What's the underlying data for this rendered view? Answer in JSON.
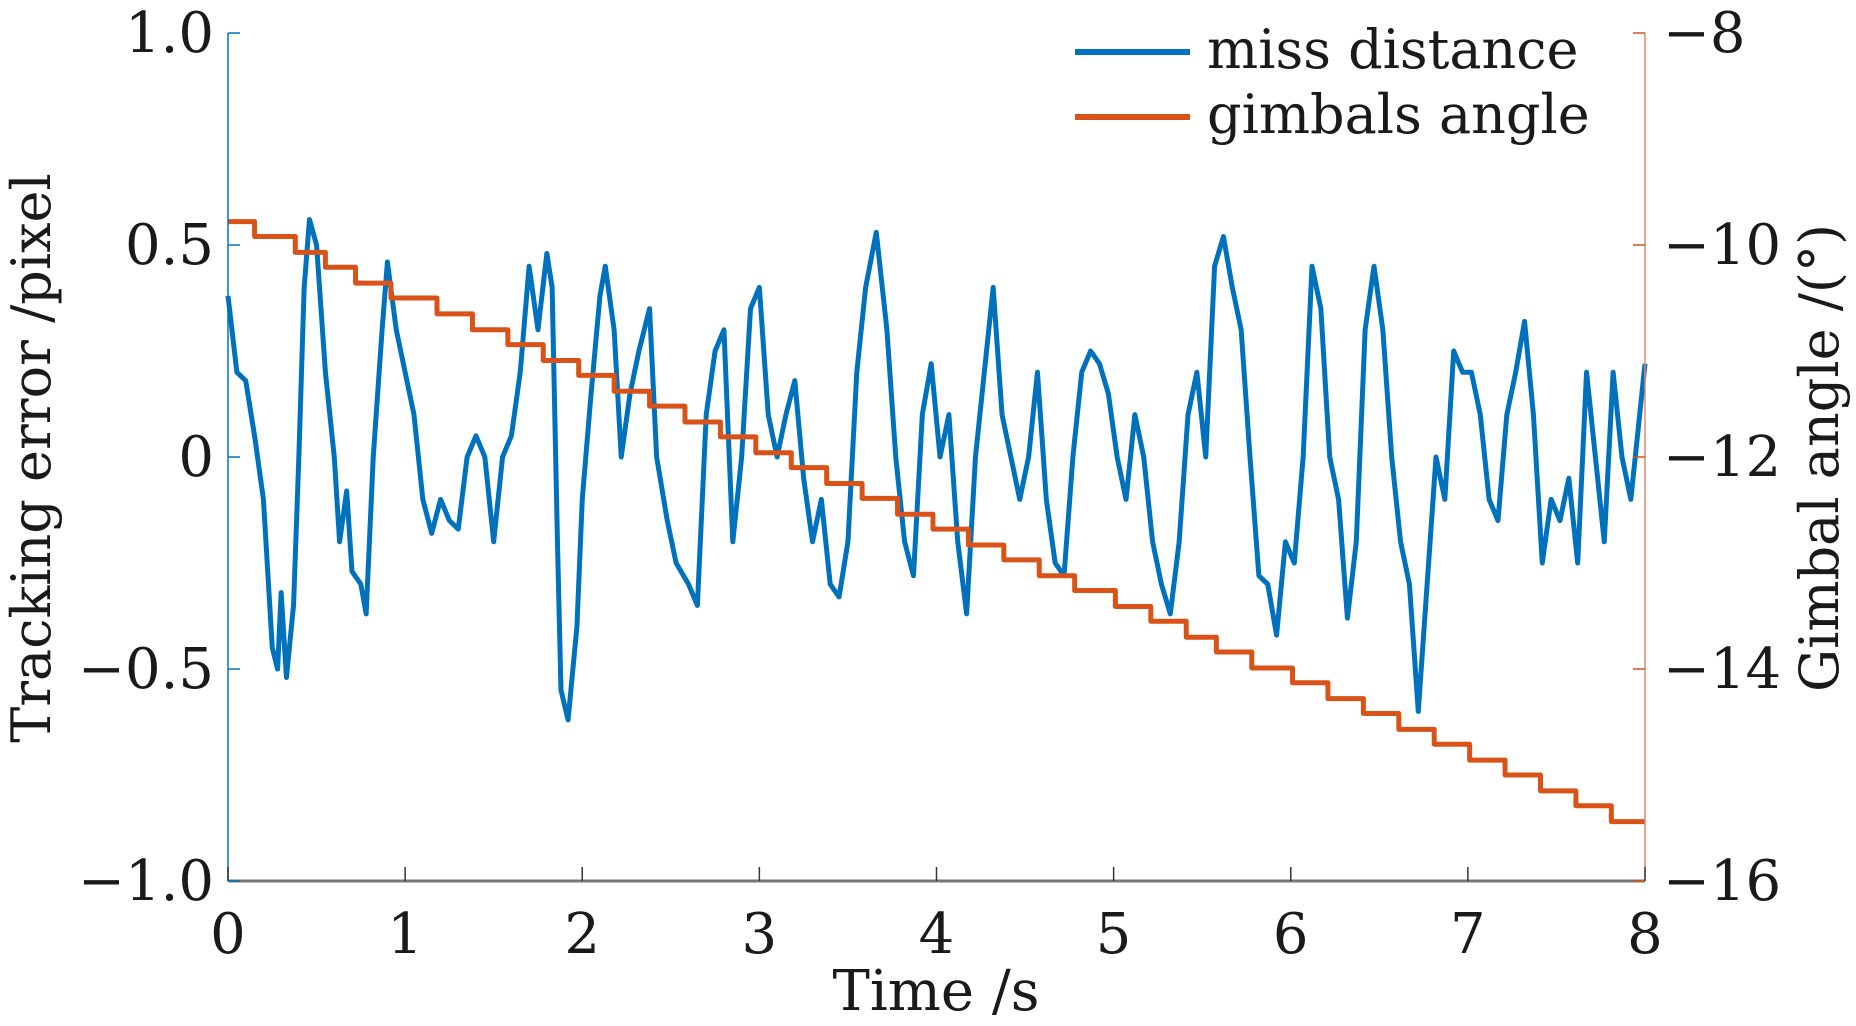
{
  "chart_data": {
    "type": "line",
    "title": "",
    "xlabel": "Time /s",
    "ylabel_left": "Tracking error /pixel",
    "ylabel_right": "Gimbal angle /(°)",
    "xlim": [
      0,
      8
    ],
    "ylim_left": [
      -1,
      1
    ],
    "ylim_right": [
      -16,
      -8
    ],
    "x_ticks": [
      "0",
      "1",
      "2",
      "3",
      "4",
      "5",
      "6",
      "7",
      "8"
    ],
    "y_left_ticks": [
      {
        "v": 1,
        "label": "1.0"
      },
      {
        "v": 0.5,
        "label": "0.5"
      },
      {
        "v": 0,
        "label": "0"
      },
      {
        "v": -0.5,
        "label": "−0.5"
      },
      {
        "v": -1,
        "label": "−1.0"
      }
    ],
    "y_right_ticks": [
      {
        "v": -8,
        "label": "−8"
      },
      {
        "v": -10,
        "label": "−10"
      },
      {
        "v": -12,
        "label": "−12"
      },
      {
        "v": -14,
        "label": "−14"
      },
      {
        "v": -16,
        "label": "−16"
      }
    ],
    "grid": false,
    "legend_position": "top-right",
    "series": [
      {
        "name": "miss distance",
        "axis": "left",
        "color": "#0072BD",
        "x": [
          0,
          0.05,
          0.1,
          0.15,
          0.2,
          0.25,
          0.28,
          0.3,
          0.33,
          0.37,
          0.4,
          0.43,
          0.46,
          0.5,
          0.55,
          0.6,
          0.63,
          0.67,
          0.7,
          0.75,
          0.78,
          0.82,
          0.87,
          0.9,
          0.95,
          1.0,
          1.05,
          1.1,
          1.15,
          1.2,
          1.25,
          1.3,
          1.35,
          1.4,
          1.45,
          1.5,
          1.55,
          1.6,
          1.65,
          1.7,
          1.75,
          1.8,
          1.83,
          1.86,
          1.88,
          1.92,
          1.97,
          2.0,
          2.05,
          2.1,
          2.13,
          2.18,
          2.22,
          2.27,
          2.32,
          2.38,
          2.42,
          2.48,
          2.53,
          2.6,
          2.65,
          2.7,
          2.75,
          2.8,
          2.85,
          2.9,
          2.95,
          3.0,
          3.05,
          3.1,
          3.15,
          3.2,
          3.25,
          3.3,
          3.35,
          3.4,
          3.45,
          3.5,
          3.55,
          3.6,
          3.66,
          3.72,
          3.77,
          3.82,
          3.87,
          3.92,
          3.97,
          4.02,
          4.07,
          4.12,
          4.17,
          4.22,
          4.27,
          4.32,
          4.37,
          4.42,
          4.47,
          4.52,
          4.57,
          4.62,
          4.67,
          4.72,
          4.77,
          4.82,
          4.87,
          4.92,
          4.97,
          5.02,
          5.07,
          5.12,
          5.17,
          5.22,
          5.27,
          5.32,
          5.37,
          5.42,
          5.47,
          5.52,
          5.57,
          5.62,
          5.67,
          5.72,
          5.77,
          5.82,
          5.87,
          5.92,
          5.97,
          6.02,
          6.07,
          6.12,
          6.17,
          6.22,
          6.27,
          6.32,
          6.37,
          6.42,
          6.47,
          6.52,
          6.57,
          6.62,
          6.67,
          6.72,
          6.77,
          6.82,
          6.87,
          6.92,
          6.97,
          7.02,
          7.07,
          7.12,
          7.17,
          7.22,
          7.27,
          7.32,
          7.37,
          7.42,
          7.47,
          7.52,
          7.57,
          7.62,
          7.67,
          7.72,
          7.77,
          7.82,
          7.87,
          7.92,
          7.97,
          8.0
        ],
        "y": [
          0.38,
          0.2,
          0.18,
          0.05,
          -0.1,
          -0.45,
          -0.5,
          -0.32,
          -0.52,
          -0.35,
          0.0,
          0.4,
          0.56,
          0.5,
          0.2,
          0.0,
          -0.2,
          -0.08,
          -0.27,
          -0.3,
          -0.37,
          0.0,
          0.3,
          0.46,
          0.3,
          0.2,
          0.1,
          -0.1,
          -0.18,
          -0.1,
          -0.15,
          -0.17,
          0.0,
          0.05,
          0.0,
          -0.2,
          0.0,
          0.05,
          0.2,
          0.45,
          0.3,
          0.48,
          0.4,
          -0.2,
          -0.55,
          -0.62,
          -0.4,
          -0.1,
          0.15,
          0.38,
          0.45,
          0.3,
          0.0,
          0.15,
          0.25,
          0.35,
          0.0,
          -0.15,
          -0.25,
          -0.3,
          -0.35,
          0.1,
          0.25,
          0.3,
          -0.2,
          0.0,
          0.35,
          0.4,
          0.1,
          0.0,
          0.1,
          0.18,
          -0.05,
          -0.2,
          -0.1,
          -0.3,
          -0.33,
          -0.2,
          0.2,
          0.4,
          0.53,
          0.3,
          0.0,
          -0.2,
          -0.28,
          0.1,
          0.22,
          0.0,
          0.1,
          -0.2,
          -0.37,
          0.0,
          0.2,
          0.4,
          0.1,
          0.0,
          -0.1,
          0.0,
          0.2,
          -0.1,
          -0.25,
          -0.28,
          0.0,
          0.2,
          0.25,
          0.22,
          0.15,
          0.0,
          -0.1,
          0.1,
          0.0,
          -0.2,
          -0.3,
          -0.37,
          -0.2,
          0.1,
          0.2,
          0.0,
          0.45,
          0.52,
          0.4,
          0.3,
          0.0,
          -0.28,
          -0.3,
          -0.42,
          -0.2,
          -0.25,
          0.0,
          0.45,
          0.35,
          0.0,
          -0.1,
          -0.38,
          -0.2,
          0.3,
          0.45,
          0.3,
          0.0,
          -0.2,
          -0.3,
          -0.6,
          -0.3,
          0.0,
          -0.1,
          0.25,
          0.2,
          0.2,
          0.1,
          -0.1,
          -0.15,
          0.1,
          0.2,
          0.32,
          0.1,
          -0.25,
          -0.1,
          -0.15,
          -0.05,
          -0.25,
          0.2,
          0.0,
          -0.2,
          0.2,
          0.0,
          -0.1,
          0.1,
          0.22
        ]
      },
      {
        "name": "gimbals angle",
        "axis": "right",
        "color": "#D95319",
        "step": true,
        "x": [
          0,
          0.15,
          0.38,
          0.55,
          0.72,
          0.92,
          1.18,
          1.38,
          1.58,
          1.78,
          1.98,
          2.18,
          2.38,
          2.58,
          2.78,
          2.98,
          3.18,
          3.38,
          3.58,
          3.78,
          3.98,
          4.18,
          4.38,
          4.58,
          4.78,
          5.01,
          5.21,
          5.41,
          5.58,
          5.78,
          6.01,
          6.21,
          6.41,
          6.61,
          6.81,
          7.01,
          7.21,
          7.41,
          7.61,
          7.81
        ],
        "y": [
          -9.78,
          -9.92,
          -10.07,
          -10.21,
          -10.36,
          -10.5,
          -10.65,
          -10.8,
          -10.94,
          -11.09,
          -11.23,
          -11.38,
          -11.52,
          -11.67,
          -11.81,
          -11.96,
          -12.1,
          -12.25,
          -12.39,
          -12.54,
          -12.68,
          -12.83,
          -12.97,
          -13.12,
          -13.26,
          -13.41,
          -13.55,
          -13.7,
          -13.84,
          -13.99,
          -14.13,
          -14.28,
          -14.42,
          -14.57,
          -14.71,
          -14.86,
          -15.0,
          -15.15,
          -15.29,
          -15.44
        ]
      }
    ]
  }
}
